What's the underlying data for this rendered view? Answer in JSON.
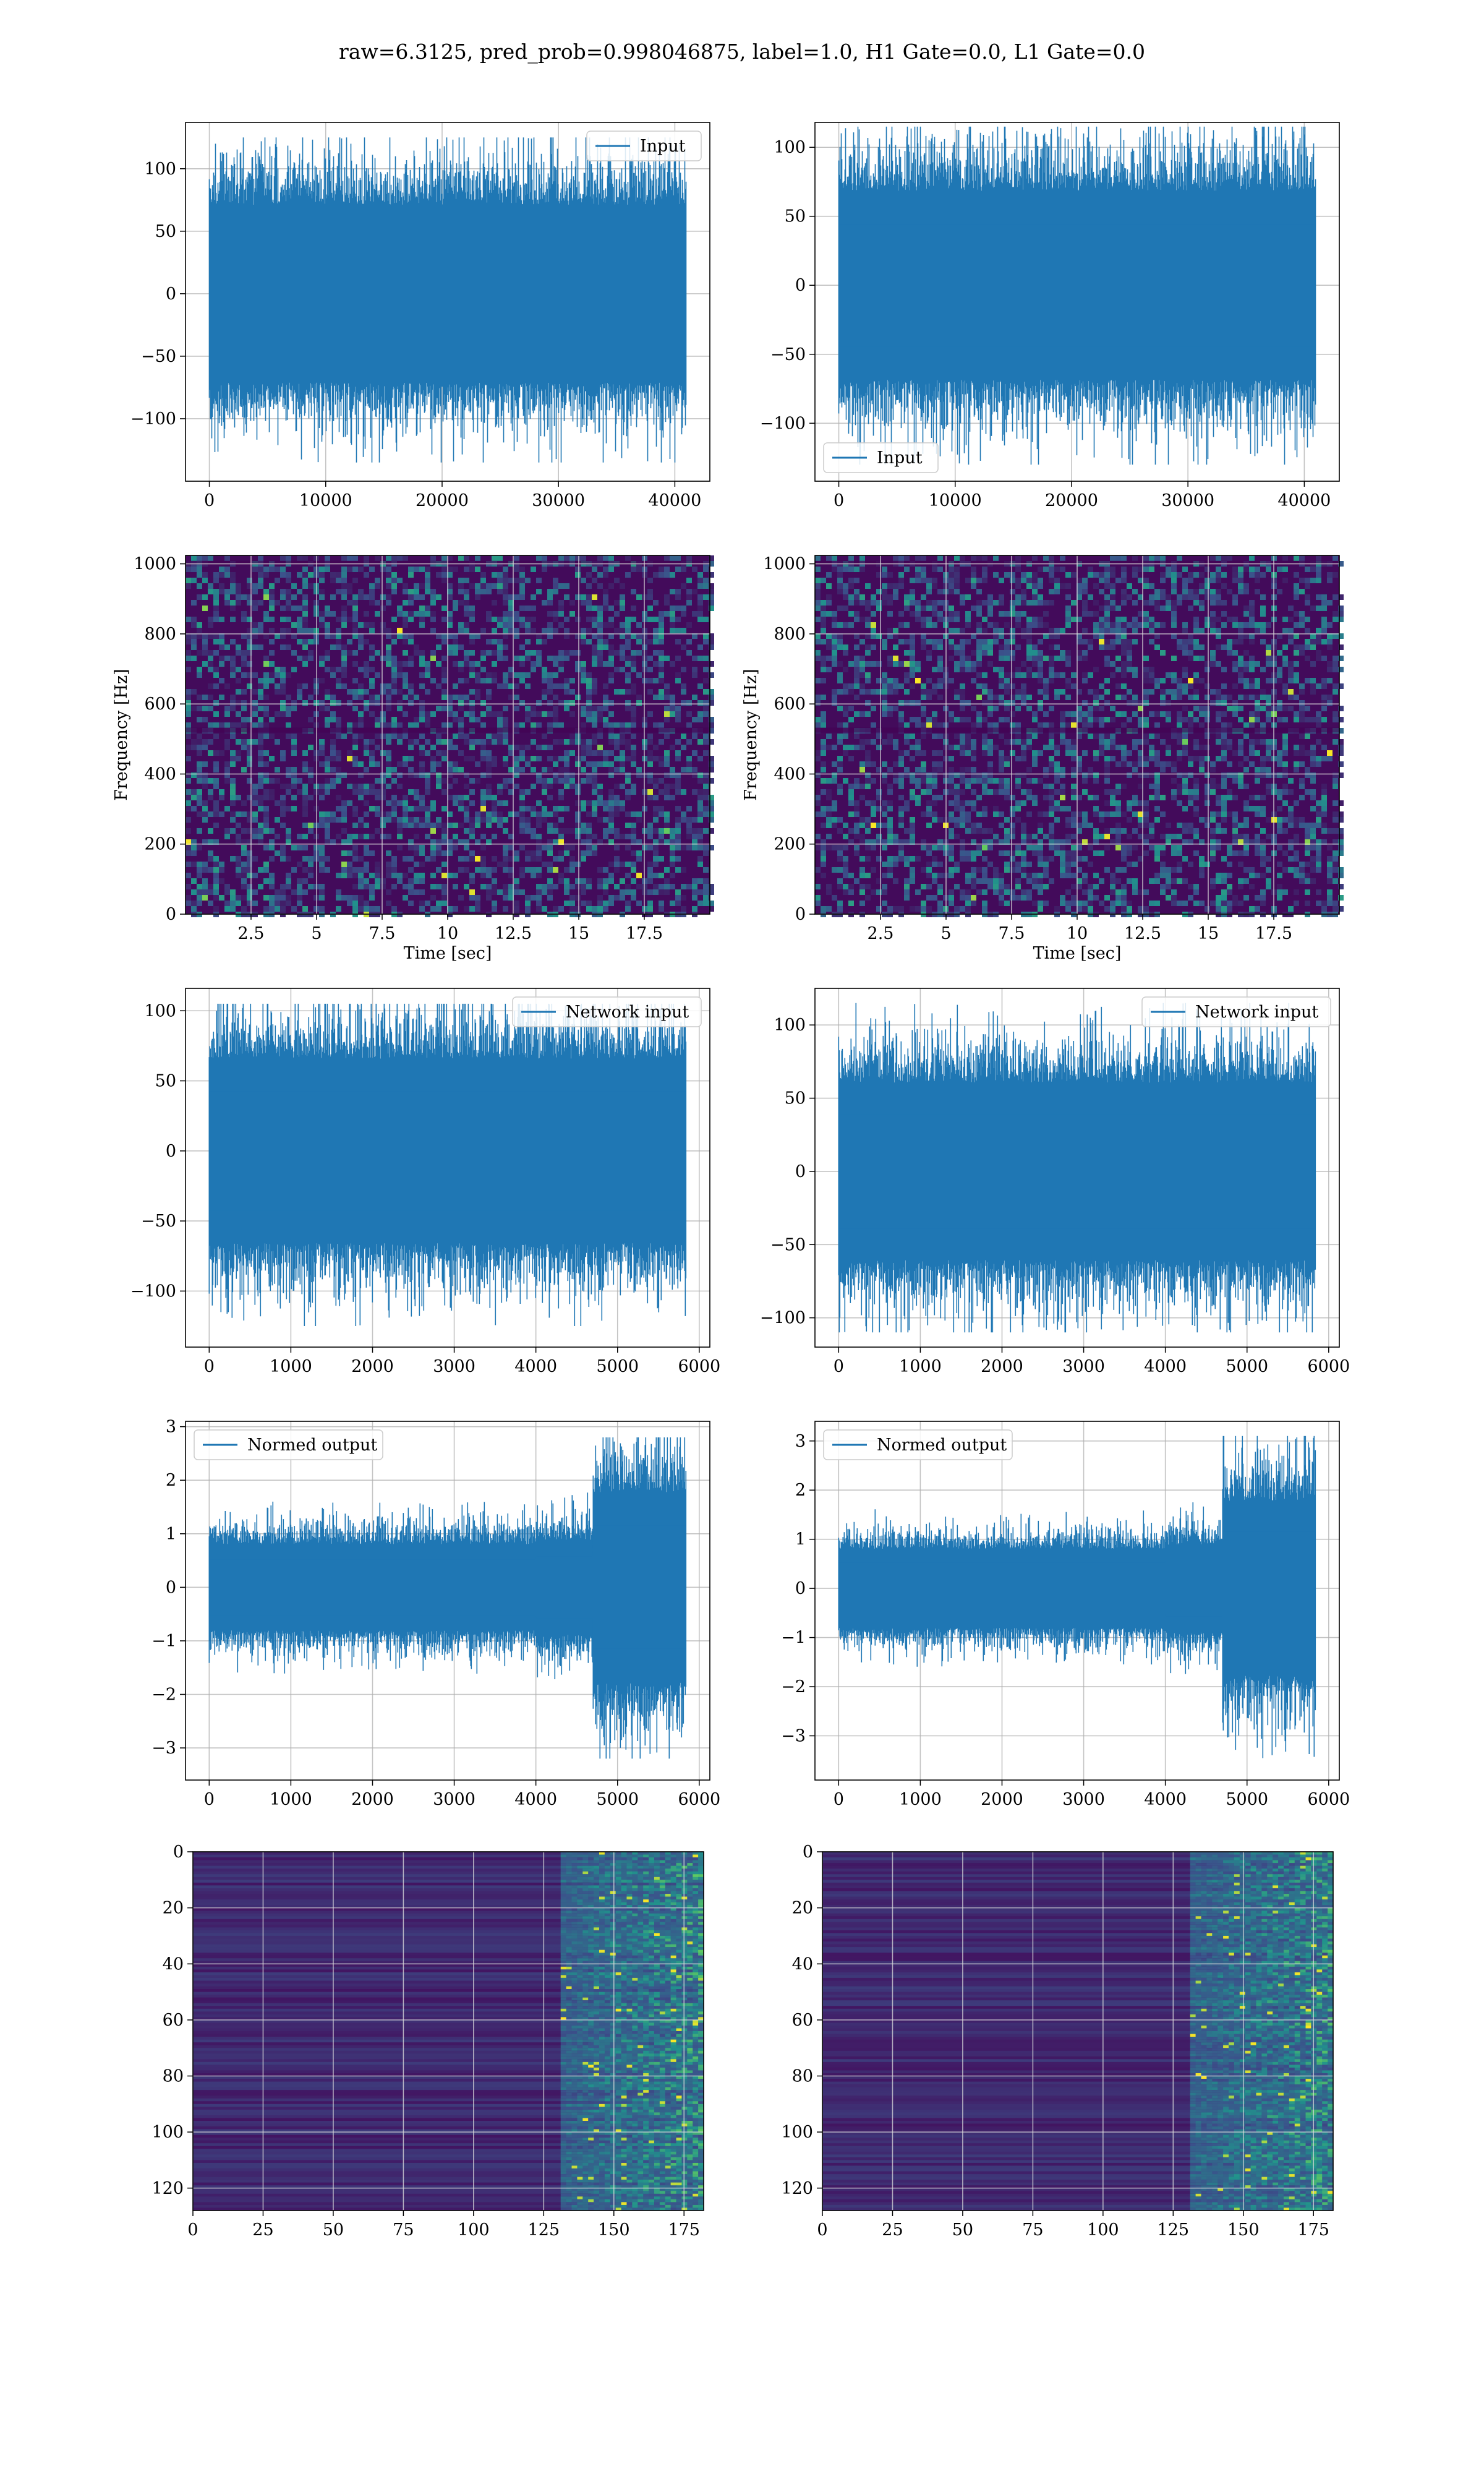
{
  "suptitle": "raw=6.3125, pred_prob=0.998046875, label=1.0, H1 Gate=0.0, L1 Gate=0.0",
  "colors": {
    "series": "#1f77b4",
    "grid": "#b0b0b0",
    "viridis_dark": "#440154",
    "viridis_teal": "#21918c",
    "viridis_yellow": "#fde725"
  },
  "chart_data": [
    {
      "type": "line",
      "panel": "row1-left",
      "series": [
        {
          "name": "Input",
          "x_range": [
            0,
            40960
          ],
          "amplitude": [
            -135,
            125
          ]
        }
      ],
      "xlim": [
        -2048,
        43008
      ],
      "ylim": [
        -150,
        137
      ],
      "xticks": [
        0,
        10000,
        20000,
        30000,
        40000
      ],
      "yticks": [
        -100,
        -50,
        0,
        50,
        100
      ],
      "legend": "top-right",
      "grid": true
    },
    {
      "type": "line",
      "panel": "row1-right",
      "series": [
        {
          "name": "Input",
          "x_range": [
            0,
            40960
          ],
          "amplitude": [
            -130,
            115
          ]
        }
      ],
      "xlim": [
        -2048,
        43008
      ],
      "ylim": [
        -142,
        118
      ],
      "xticks": [
        0,
        10000,
        20000,
        30000,
        40000
      ],
      "yticks": [
        -100,
        -50,
        0,
        50,
        100
      ],
      "legend": "bottom-left",
      "grid": true
    },
    {
      "type": "heatmap",
      "panel": "row2-left",
      "xlabel": "Time [sec]",
      "ylabel": "Frequency [Hz]",
      "xlim": [
        0,
        20
      ],
      "ylim": [
        0,
        1024
      ],
      "xticks": [
        2.5,
        5.0,
        7.5,
        10.0,
        12.5,
        15.0,
        17.5
      ],
      "yticks": [
        0,
        200,
        400,
        600,
        800,
        1000
      ],
      "colormap": "viridis",
      "grid": true
    },
    {
      "type": "heatmap",
      "panel": "row2-right",
      "xlabel": "Time [sec]",
      "ylabel": "Frequency [Hz]",
      "xlim": [
        0,
        20
      ],
      "ylim": [
        0,
        1024
      ],
      "xticks": [
        2.5,
        5.0,
        7.5,
        10.0,
        12.5,
        15.0,
        17.5
      ],
      "yticks": [
        0,
        200,
        400,
        600,
        800,
        1000
      ],
      "colormap": "viridis",
      "grid": true
    },
    {
      "type": "line",
      "panel": "row3-left",
      "series": [
        {
          "name": "Network input",
          "x_range": [
            0,
            5836
          ],
          "amplitude": [
            -125,
            105
          ]
        }
      ],
      "xlim": [
        -290,
        6130
      ],
      "ylim": [
        -140,
        116
      ],
      "xticks": [
        0,
        1000,
        2000,
        3000,
        4000,
        5000,
        6000
      ],
      "yticks": [
        -100,
        -50,
        0,
        50,
        100
      ],
      "legend": "top-right",
      "grid": true
    },
    {
      "type": "line",
      "panel": "row3-right",
      "series": [
        {
          "name": "Network input",
          "x_range": [
            0,
            5836
          ],
          "amplitude": [
            -110,
            115
          ]
        }
      ],
      "xlim": [
        -290,
        6130
      ],
      "ylim": [
        -120,
        125
      ],
      "xticks": [
        0,
        1000,
        2000,
        3000,
        4000,
        5000,
        6000
      ],
      "yticks": [
        -100,
        -50,
        0,
        50,
        100
      ],
      "legend": "top-right",
      "grid": true
    },
    {
      "type": "line",
      "panel": "row4-left",
      "series": [
        {
          "name": "Normed output",
          "x_range": [
            0,
            5836
          ],
          "amplitude": [
            -3.2,
            2.8
          ],
          "burst_start": 4700
        }
      ],
      "xlim": [
        -290,
        6130
      ],
      "ylim": [
        -3.6,
        3.1
      ],
      "xticks": [
        0,
        1000,
        2000,
        3000,
        4000,
        5000,
        6000
      ],
      "yticks": [
        -3,
        -2,
        -1,
        0,
        1,
        2,
        3
      ],
      "legend": "top-left",
      "grid": true
    },
    {
      "type": "line",
      "panel": "row4-right",
      "series": [
        {
          "name": "Normed output",
          "x_range": [
            0,
            5836
          ],
          "amplitude": [
            -3.6,
            3.1
          ],
          "burst_start": 4700
        }
      ],
      "xlim": [
        -290,
        6130
      ],
      "ylim": [
        -3.9,
        3.4
      ],
      "xticks": [
        0,
        1000,
        2000,
        3000,
        4000,
        5000,
        6000
      ],
      "yticks": [
        -3,
        -2,
        -1,
        0,
        1,
        2,
        3
      ],
      "legend": "top-left",
      "grid": true
    },
    {
      "type": "heatmap",
      "panel": "row5-left",
      "xlim": [
        0,
        182
      ],
      "ylim": [
        128,
        0
      ],
      "xticks": [
        0,
        25,
        50,
        75,
        100,
        125,
        150,
        175
      ],
      "yticks": [
        0,
        20,
        40,
        60,
        80,
        100,
        120
      ],
      "colormap": "viridis",
      "grid": true
    },
    {
      "type": "heatmap",
      "panel": "row5-right",
      "xlim": [
        0,
        182
      ],
      "ylim": [
        128,
        0
      ],
      "xticks": [
        0,
        25,
        50,
        75,
        100,
        125,
        150,
        175
      ],
      "yticks": [
        0,
        20,
        40,
        60,
        80,
        100,
        120
      ],
      "colormap": "viridis",
      "grid": true
    }
  ]
}
